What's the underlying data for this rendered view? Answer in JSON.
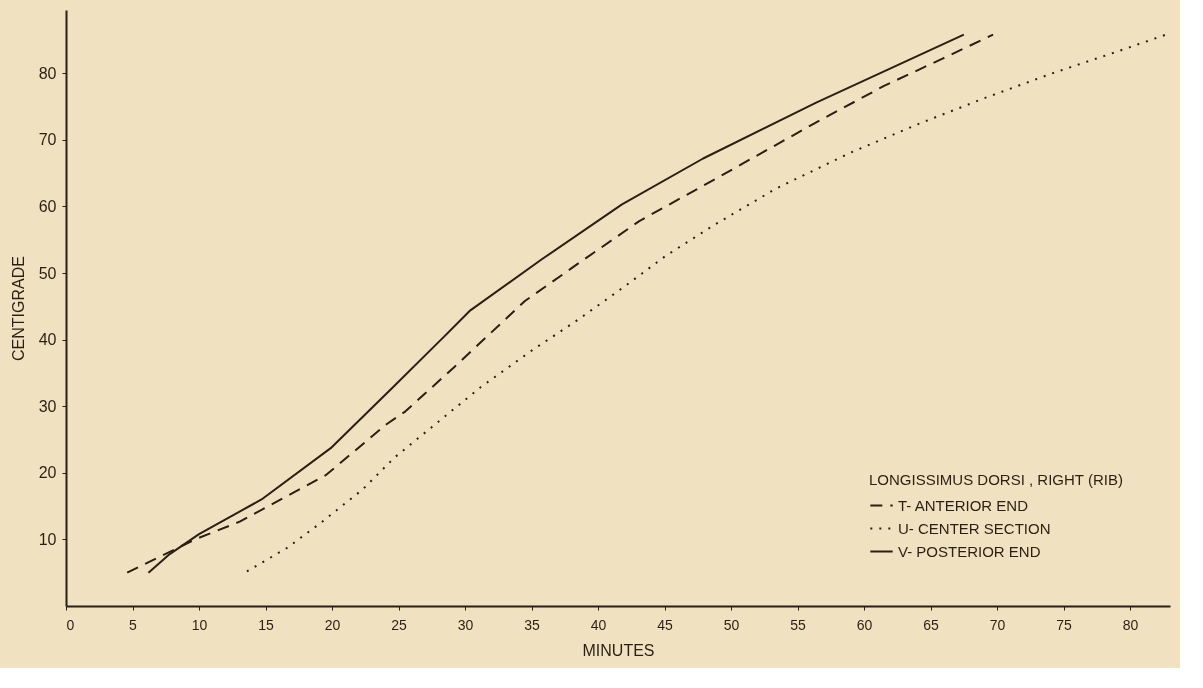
{
  "chart_data": {
    "type": "line",
    "xlabel": "MINUTES",
    "ylabel": "CENTIGRADE",
    "legend_title": "LONGISSIMUS DORSI , RIGHT (RIB)",
    "xlim": [
      0,
      83
    ],
    "xticks": [
      0,
      5,
      10,
      15,
      20,
      25,
      30,
      35,
      40,
      45,
      50,
      55,
      60,
      65,
      70,
      75,
      80
    ],
    "ylim": [
      0,
      89.5
    ],
    "yticks": [
      10,
      20,
      30,
      40,
      50,
      60,
      70,
      80
    ],
    "grid": false,
    "legend": "bottom right",
    "marker": "none",
    "series": [
      {
        "name": "T- ANTERIOR END",
        "color": "#2a1f14",
        "line_style": "dashed",
        "x": [
          4.6,
          9.7,
          13.1,
          19.5,
          24.1,
          25.5,
          29.2,
          34.5,
          38.7,
          43.1,
          48.7,
          56.2,
          61.5,
          65.9,
          69.7
        ],
        "values": [
          5,
          10,
          12.7,
          19.6,
          27.3,
          29.2,
          35.9,
          45.8,
          51.7,
          57.8,
          64,
          72.4,
          78.1,
          82.2,
          85.8
        ]
      },
      {
        "name": "U- CENTER SECTION",
        "color": "#2a1f14",
        "line_style": "dotted",
        "x": [
          13.6,
          16.6,
          19.1,
          22.3,
          24.7,
          27.4,
          31.2,
          34.9,
          38.5,
          41.8,
          45.1,
          48.8,
          53.4,
          58.9,
          64.1,
          69.1,
          74.3,
          78.8,
          82.7
        ],
        "values": [
          5.2,
          8.7,
          12.4,
          17.5,
          22.3,
          26.7,
          32.9,
          38.2,
          43,
          47.7,
          52.6,
          57.3,
          62.7,
          68,
          72.4,
          76.3,
          80.1,
          83.1,
          85.8
        ]
      },
      {
        "name": "V- POSTERIOR END",
        "color": "#2a1f14",
        "line_style": "solid",
        "x": [
          6.2,
          7.8,
          10,
          14.7,
          19.9,
          24.6,
          28.5,
          30.4,
          35.8,
          41.8,
          47.9,
          56.4,
          67.5
        ],
        "values": [
          5,
          7.8,
          10.8,
          16,
          23.7,
          32.9,
          40.6,
          44.4,
          52.1,
          60.3,
          67.2,
          75.6,
          85.8
        ]
      }
    ]
  }
}
